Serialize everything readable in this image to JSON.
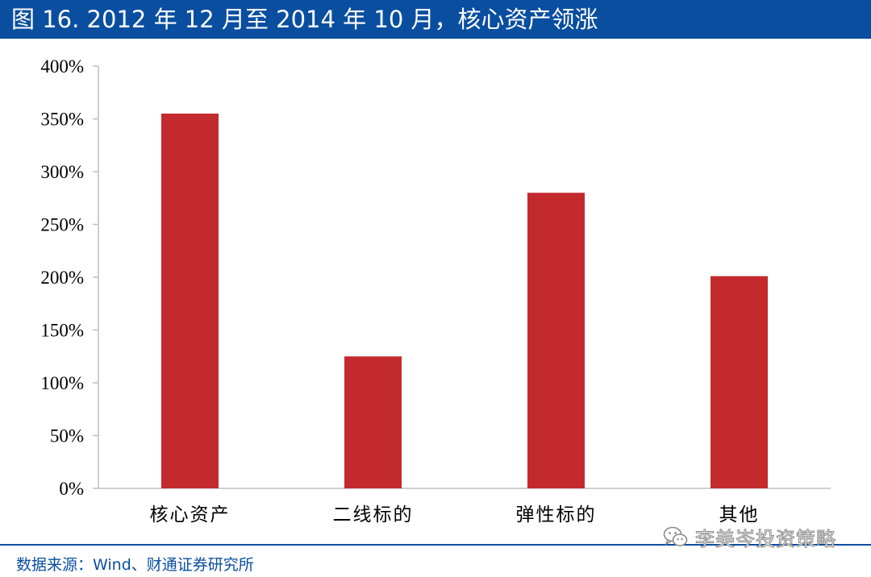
{
  "header": {
    "title": "图 16. 2012 年 12 月至 2014 年 10 月，核心资产领涨"
  },
  "chart_data": {
    "type": "bar",
    "title": "",
    "xlabel": "",
    "ylabel": "",
    "categories": [
      "核心资产",
      "二线标的",
      "弹性标的",
      "其他"
    ],
    "values": [
      355,
      125,
      280,
      201
    ],
    "unit": "%",
    "ylim": [
      0,
      400
    ],
    "yticks": [
      0,
      50,
      100,
      150,
      200,
      250,
      300,
      350,
      400
    ],
    "ytick_labels": [
      "0%",
      "50%",
      "100%",
      "150%",
      "200%",
      "250%",
      "300%",
      "350%",
      "400%"
    ],
    "bar_color": "#c32a2e",
    "grid": false,
    "legend": "none"
  },
  "footer": {
    "source": "数据来源：Wind、财通证券研究所"
  },
  "watermark": {
    "text": "李美岑投资策略",
    "icon": "wechat-icon"
  },
  "colors": {
    "brand": "#0a4ea0",
    "bar": "#c32a2e",
    "axis": "#bfbfbf"
  }
}
